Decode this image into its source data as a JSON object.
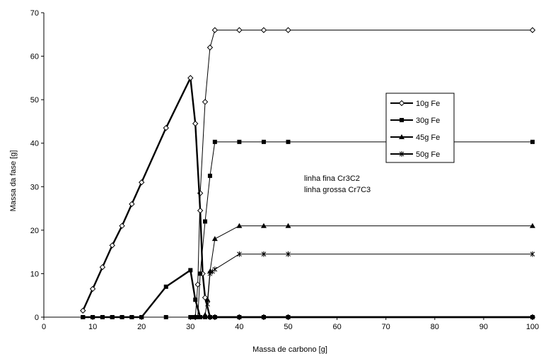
{
  "chart_data": {
    "type": "line",
    "xlabel": "Massa de carbono [g]",
    "ylabel": "Massa da fase [g]",
    "xlim": [
      0,
      100
    ],
    "ylim": [
      0,
      70
    ],
    "x_ticks": [
      0,
      10,
      20,
      30,
      40,
      50,
      60,
      70,
      80,
      90,
      100
    ],
    "y_ticks": [
      0,
      10,
      20,
      30,
      40,
      50,
      60,
      70
    ],
    "grid": false,
    "legend_position": "right-center",
    "annotations": [
      "linha fina Cr3C2",
      "linha grossa Cr7C3"
    ],
    "series": [
      {
        "name": "10g Fe",
        "marker": "diamond-open",
        "line": "thin",
        "x": [
          31,
          31.5,
          32,
          33,
          34,
          35,
          40,
          45,
          50,
          100
        ],
        "y": [
          0,
          7.5,
          28.5,
          49.5,
          62,
          66,
          66,
          66,
          66,
          66
        ]
      },
      {
        "name": "10g Fe",
        "marker": "diamond-open",
        "line": "thick",
        "x": [
          8,
          10,
          12,
          14,
          16,
          18,
          20,
          25,
          30,
          31,
          32,
          32.5,
          33,
          34,
          35,
          40,
          45,
          50,
          100
        ],
        "y": [
          1.5,
          6.5,
          11.5,
          16.5,
          21,
          26,
          31,
          43.5,
          55,
          44.5,
          24.5,
          10,
          4.5,
          0,
          0,
          0,
          0,
          0,
          0
        ]
      },
      {
        "name": "30g Fe",
        "marker": "square-filled",
        "line": "thin",
        "x": [
          8,
          10,
          12,
          14,
          16,
          18,
          20,
          25,
          30,
          30.5,
          31,
          31.5,
          32,
          33,
          34,
          35,
          40,
          45,
          50,
          100
        ],
        "y": [
          0,
          0,
          0,
          0,
          0,
          0,
          0,
          0,
          0,
          0,
          0,
          0,
          10,
          22,
          32.5,
          40.3,
          40.3,
          40.3,
          40.3,
          40.3
        ]
      },
      {
        "name": "30g Fe",
        "marker": "square-filled",
        "line": "thick",
        "x": [
          8,
          10,
          12,
          14,
          16,
          18,
          20,
          25,
          30,
          31,
          32,
          33,
          34,
          35,
          40,
          45,
          50,
          100
        ],
        "y": [
          0,
          0,
          0,
          0,
          0,
          0,
          0,
          7,
          10.8,
          4,
          0,
          0,
          0,
          0,
          0,
          0,
          0,
          0
        ]
      },
      {
        "name": "45g Fe",
        "marker": "triangle-filled",
        "line": "thin",
        "x": [
          33,
          33.5,
          34,
          35,
          40,
          45,
          50,
          100
        ],
        "y": [
          0.5,
          4,
          10.5,
          18,
          21,
          21,
          21,
          21
        ]
      },
      {
        "name": "50g Fe",
        "marker": "asterisk",
        "line": "thin",
        "x": [
          33.5,
          34,
          34.5,
          35,
          40,
          45,
          50,
          100
        ],
        "y": [
          3,
          10,
          10.5,
          11,
          14.5,
          14.5,
          14.5,
          14.5
        ]
      }
    ]
  }
}
